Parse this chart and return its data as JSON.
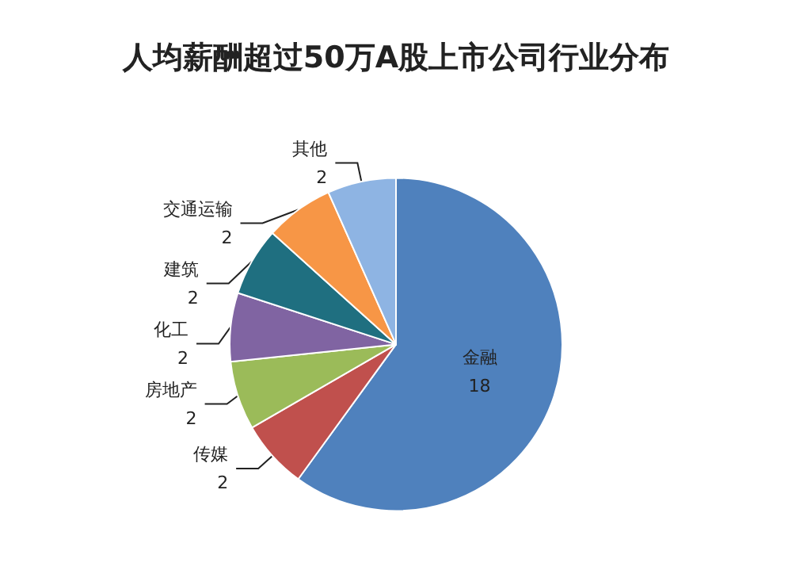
{
  "chart_data": {
    "type": "pie",
    "title": "人均薪酬超过50万A股上市公司行业分布",
    "categories": [
      "金融",
      "传媒",
      "房地产",
      "化工",
      "建筑",
      "交通运输",
      "其他"
    ],
    "values": [
      18,
      2,
      2,
      2,
      2,
      2,
      2
    ],
    "colors": [
      "#4f81bd",
      "#c0504d",
      "#9bbb59",
      "#8064a2",
      "#1f6f80",
      "#f79646",
      "#8eb4e3"
    ],
    "data_labels": true,
    "legend": false
  }
}
